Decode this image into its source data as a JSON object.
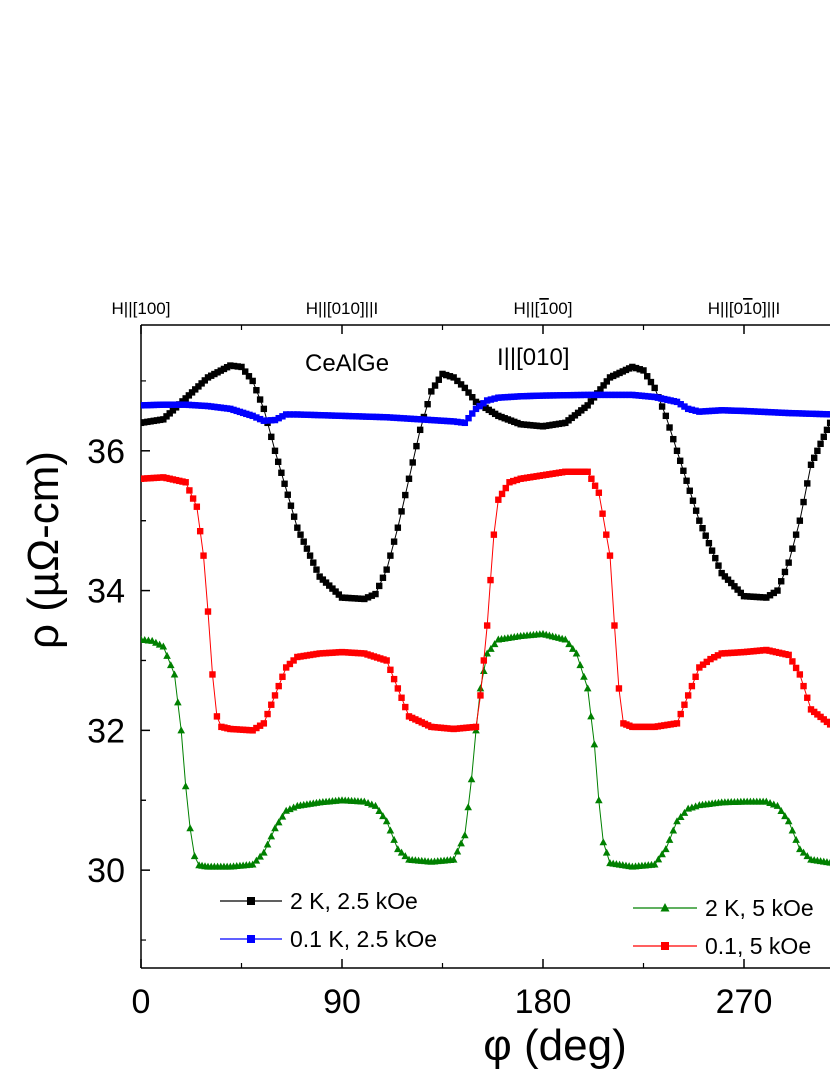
{
  "chart_data": {
    "type": "scatter",
    "xlabel": "φ (deg)",
    "ylabel": "ρ (µΩ-cm)",
    "xlim": [
      0,
      310
    ],
    "ylim": [
      28.6,
      37.8
    ],
    "x_ticks": [
      "0",
      "90",
      "180",
      "270"
    ],
    "y_ticks": [
      "30",
      "32",
      "34",
      "36"
    ],
    "top_labels": [
      {
        "label": "H||[100]",
        "x": 0
      },
      {
        "label": "H||[010]||I",
        "x": 90
      },
      {
        "label": "H||[100]",
        "x": 180,
        "overbar": "1"
      },
      {
        "label": "H||[010]||I",
        "x": 270,
        "overbar": "1"
      }
    ],
    "annotations": [
      "CeAlGe",
      "I||[010]"
    ],
    "legend_position": "bottom",
    "series": [
      {
        "name": "2 K, 2.5 kOe",
        "color": "#000000",
        "marker": "square",
        "x": [
          0,
          10,
          20,
          30,
          40,
          45,
          50,
          55,
          60,
          70,
          80,
          90,
          100,
          105,
          110,
          115,
          120,
          125,
          130,
          135,
          140,
          145,
          150,
          160,
          170,
          180,
          190,
          200,
          210,
          220,
          225,
          230,
          235,
          240,
          250,
          260,
          270,
          280,
          285,
          290,
          295,
          300,
          310
        ],
        "y": [
          36.4,
          36.45,
          36.75,
          37.05,
          37.22,
          37.2,
          37.0,
          36.6,
          36.0,
          34.9,
          34.2,
          33.9,
          33.88,
          33.95,
          34.3,
          34.9,
          35.6,
          36.3,
          36.85,
          37.1,
          37.05,
          36.9,
          36.7,
          36.5,
          36.38,
          36.35,
          36.4,
          36.65,
          37.05,
          37.2,
          37.15,
          36.9,
          36.5,
          36.0,
          35.0,
          34.25,
          33.92,
          33.9,
          34.0,
          34.4,
          35.0,
          35.8,
          36.5
        ]
      },
      {
        "name": "0.1 K, 2.5 kOe",
        "color": "#0000ff",
        "marker": "square",
        "x": [
          0,
          10,
          20,
          30,
          40,
          50,
          55,
          60,
          65,
          70,
          90,
          110,
          130,
          140,
          145,
          150,
          155,
          160,
          170,
          180,
          200,
          220,
          230,
          240,
          245,
          250,
          260,
          270,
          290,
          310
        ],
        "y": [
          36.65,
          36.66,
          36.66,
          36.64,
          36.6,
          36.5,
          36.43,
          36.44,
          36.52,
          36.52,
          36.5,
          36.48,
          36.44,
          36.42,
          36.4,
          36.6,
          36.72,
          36.76,
          36.78,
          36.79,
          36.8,
          36.8,
          36.77,
          36.7,
          36.6,
          36.56,
          36.58,
          36.57,
          36.54,
          36.52
        ]
      },
      {
        "name": "2 K, 5 kOe",
        "color": "#008000",
        "marker": "triangle",
        "x": [
          0,
          5,
          10,
          15,
          18,
          20,
          22,
          24,
          26,
          30,
          40,
          50,
          55,
          60,
          65,
          70,
          80,
          90,
          100,
          105,
          110,
          115,
          120,
          130,
          140,
          145,
          148,
          150,
          152,
          155,
          160,
          170,
          180,
          190,
          195,
          200,
          203,
          205,
          207,
          210,
          220,
          230,
          235,
          240,
          245,
          250,
          260,
          270,
          280,
          285,
          290,
          295,
          300,
          310
        ],
        "y": [
          33.3,
          33.28,
          33.2,
          32.8,
          32.0,
          31.2,
          30.6,
          30.2,
          30.07,
          30.05,
          30.05,
          30.08,
          30.25,
          30.6,
          30.85,
          30.92,
          30.97,
          31.0,
          30.98,
          30.92,
          30.7,
          30.3,
          30.15,
          30.12,
          30.15,
          30.5,
          31.3,
          32.0,
          32.6,
          33.1,
          33.3,
          33.35,
          33.38,
          33.3,
          33.1,
          32.6,
          31.8,
          31.0,
          30.4,
          30.1,
          30.05,
          30.08,
          30.3,
          30.7,
          30.88,
          30.93,
          30.97,
          30.98,
          30.98,
          30.92,
          30.7,
          30.3,
          30.15,
          30.1
        ]
      },
      {
        "name": "0.1, 5 kOe",
        "color": "#ff0000",
        "marker": "square",
        "x": [
          0,
          10,
          20,
          25,
          28,
          30,
          32,
          34,
          36,
          40,
          50,
          55,
          60,
          65,
          70,
          80,
          90,
          100,
          110,
          115,
          120,
          130,
          140,
          150,
          152,
          155,
          158,
          160,
          165,
          170,
          180,
          190,
          200,
          205,
          210,
          212,
          214,
          216,
          220,
          230,
          240,
          245,
          250,
          255,
          260,
          270,
          280,
          290,
          295,
          300,
          310
        ],
        "y": [
          35.6,
          35.62,
          35.55,
          35.2,
          34.5,
          33.7,
          32.8,
          32.2,
          32.05,
          32.02,
          32.0,
          32.1,
          32.5,
          32.9,
          33.05,
          33.1,
          33.12,
          33.1,
          33.0,
          32.6,
          32.2,
          32.05,
          32.02,
          32.05,
          32.5,
          33.5,
          34.8,
          35.3,
          35.55,
          35.6,
          35.65,
          35.7,
          35.7,
          35.4,
          34.5,
          33.5,
          32.6,
          32.1,
          32.05,
          32.05,
          32.1,
          32.5,
          32.9,
          33.02,
          33.1,
          33.12,
          33.15,
          33.08,
          32.8,
          32.3,
          32.05
        ]
      }
    ]
  }
}
